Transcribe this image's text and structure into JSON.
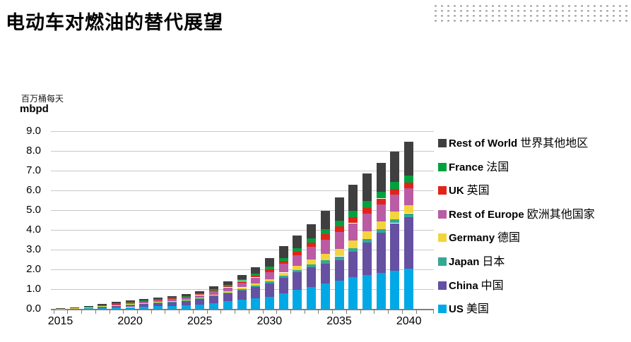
{
  "page": {
    "title": "电动车对燃油的替代展望"
  },
  "y_axis": {
    "unit_zh": "百万桶每天",
    "unit_en": "mbpd",
    "ticks": [
      "0.0",
      "1.0",
      "2.0",
      "3.0",
      "4.0",
      "5.0",
      "6.0",
      "7.0",
      "8.0",
      "9.0"
    ]
  },
  "x_axis": {
    "labels": [
      "2015",
      "2020",
      "2025",
      "2030",
      "2035",
      "2040"
    ]
  },
  "legend": [
    {
      "name_en": "Rest of World",
      "name_zh": "世界其他地区",
      "color": "#3f3f3f"
    },
    {
      "name_en": "France",
      "name_zh": "法国",
      "color": "#00a13e"
    },
    {
      "name_en": "UK",
      "name_zh": "英国",
      "color": "#e2231a"
    },
    {
      "name_en": "Rest of Europe",
      "name_zh": "欧洲其他国家",
      "color": "#ba5ba4"
    },
    {
      "name_en": "Germany",
      "name_zh": "德国",
      "color": "#f2d53c"
    },
    {
      "name_en": "Japan",
      "name_zh": "日本",
      "color": "#35a894"
    },
    {
      "name_en": "China",
      "name_zh": "中国",
      "color": "#6650a2"
    },
    {
      "name_en": "US",
      "name_zh": "美国",
      "color": "#00a9e6"
    }
  ],
  "chart_data": {
    "type": "bar",
    "stacked": true,
    "title": "电动车对燃油的替代展望",
    "ylabel": "mbpd (百万桶每天)",
    "ylim": [
      0,
      9
    ],
    "grid": true,
    "legend_position": "right",
    "years": [
      2015,
      2016,
      2017,
      2018,
      2019,
      2020,
      2021,
      2022,
      2023,
      2024,
      2025,
      2026,
      2027,
      2028,
      2029,
      2030,
      2031,
      2032,
      2033,
      2034,
      2035,
      2036,
      2037,
      2038,
      2039,
      2040
    ],
    "series": [
      {
        "name": "US",
        "name_zh": "美国",
        "color": "#00a9e6",
        "values": [
          0.01,
          0.02,
          0.03,
          0.045,
          0.065,
          0.09,
          0.11,
          0.13,
          0.15,
          0.18,
          0.22,
          0.3,
          0.38,
          0.46,
          0.54,
          0.62,
          0.78,
          0.95,
          1.12,
          1.28,
          1.43,
          1.6,
          1.72,
          1.82,
          1.94,
          2.05
        ]
      },
      {
        "name": "China",
        "name_zh": "中国",
        "color": "#6650a2",
        "values": [
          0.005,
          0.015,
          0.035,
          0.06,
          0.09,
          0.12,
          0.14,
          0.165,
          0.19,
          0.22,
          0.27,
          0.33,
          0.4,
          0.48,
          0.57,
          0.68,
          0.8,
          0.9,
          0.98,
          1.02,
          1.05,
          1.3,
          1.65,
          2.05,
          2.4,
          2.6
        ]
      },
      {
        "name": "Japan",
        "name_zh": "日本",
        "color": "#35a894",
        "values": [
          0.002,
          0.005,
          0.008,
          0.01,
          0.015,
          0.02,
          0.022,
          0.025,
          0.028,
          0.031,
          0.035,
          0.04,
          0.05,
          0.06,
          0.07,
          0.08,
          0.1,
          0.12,
          0.14,
          0.16,
          0.18,
          0.18,
          0.18,
          0.18,
          0.19,
          0.19
        ]
      },
      {
        "name": "Germany",
        "name_zh": "德国",
        "color": "#f2d53c",
        "values": [
          0.002,
          0.005,
          0.008,
          0.013,
          0.018,
          0.022,
          0.027,
          0.032,
          0.036,
          0.043,
          0.05,
          0.06,
          0.07,
          0.09,
          0.11,
          0.13,
          0.16,
          0.21,
          0.27,
          0.33,
          0.39,
          0.39,
          0.39,
          0.39,
          0.4,
          0.4
        ]
      },
      {
        "name": "Rest of Europe",
        "name_zh": "欧洲其他国家",
        "color": "#ba5ba4",
        "values": [
          0.005,
          0.015,
          0.03,
          0.05,
          0.065,
          0.07,
          0.08,
          0.09,
          0.1,
          0.11,
          0.12,
          0.16,
          0.19,
          0.24,
          0.3,
          0.36,
          0.43,
          0.52,
          0.62,
          0.72,
          0.83,
          0.87,
          0.87,
          0.86,
          0.86,
          0.86
        ]
      },
      {
        "name": "UK",
        "name_zh": "英国",
        "color": "#e2231a",
        "values": [
          0.001,
          0.003,
          0.006,
          0.009,
          0.012,
          0.015,
          0.019,
          0.023,
          0.028,
          0.037,
          0.05,
          0.05,
          0.06,
          0.08,
          0.1,
          0.13,
          0.15,
          0.18,
          0.22,
          0.26,
          0.3,
          0.31,
          0.3,
          0.29,
          0.28,
          0.28
        ]
      },
      {
        "name": "France",
        "name_zh": "法国",
        "color": "#00a13e",
        "values": [
          0.001,
          0.003,
          0.006,
          0.009,
          0.012,
          0.015,
          0.019,
          0.023,
          0.028,
          0.037,
          0.05,
          0.06,
          0.06,
          0.08,
          0.11,
          0.13,
          0.15,
          0.18,
          0.22,
          0.26,
          0.3,
          0.33,
          0.34,
          0.35,
          0.35,
          0.36
        ]
      },
      {
        "name": "Rest of World",
        "name_zh": "世界其他地区",
        "color": "#3f3f3f",
        "values": [
          0.005,
          0.015,
          0.03,
          0.055,
          0.07,
          0.08,
          0.088,
          0.094,
          0.1,
          0.102,
          0.105,
          0.14,
          0.2,
          0.24,
          0.31,
          0.45,
          0.6,
          0.64,
          0.73,
          0.92,
          1.17,
          1.32,
          1.4,
          1.46,
          1.53,
          1.71
        ]
      }
    ]
  }
}
